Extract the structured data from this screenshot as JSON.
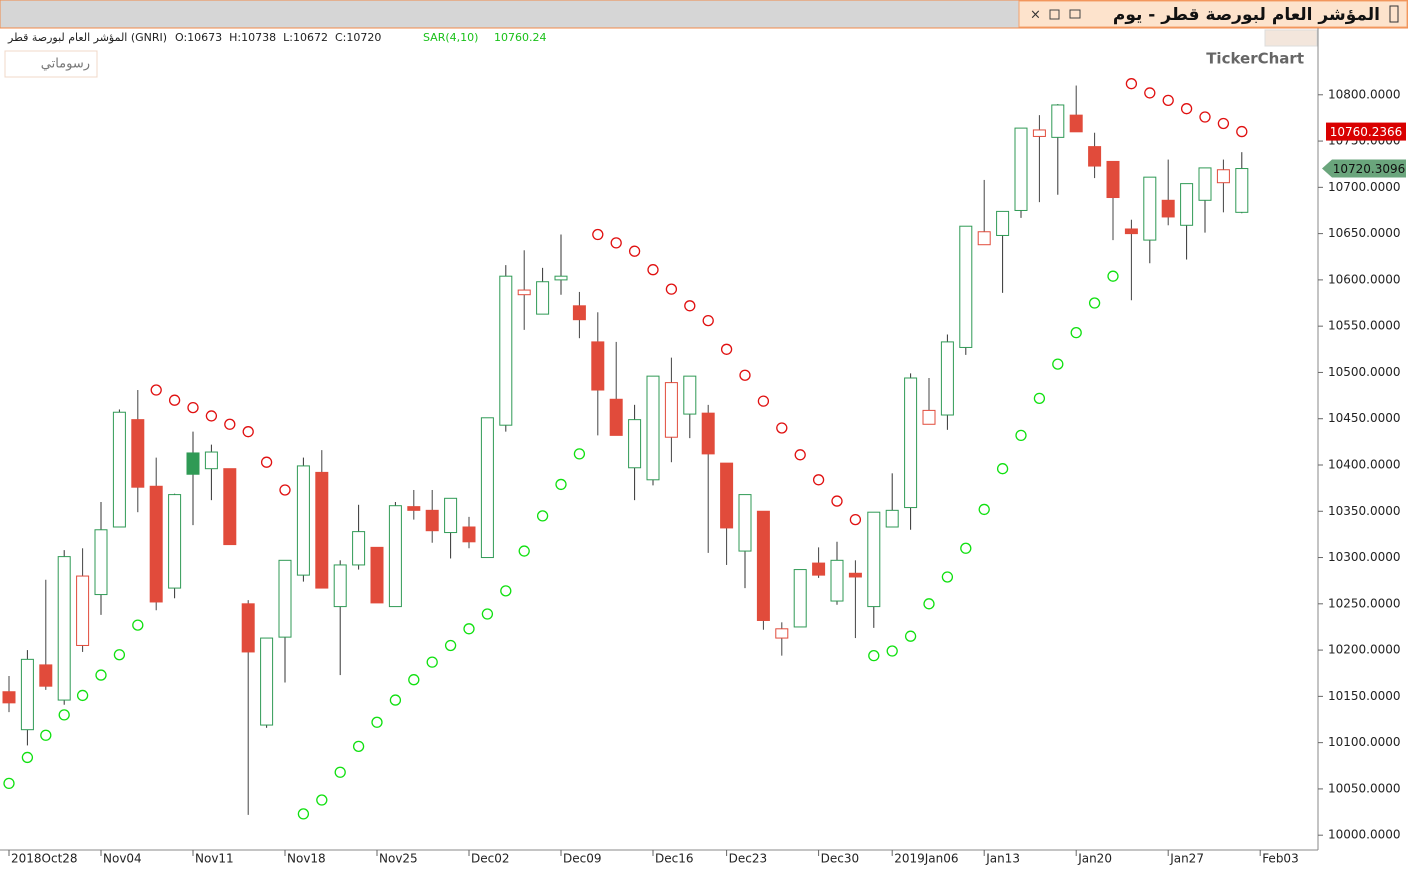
{
  "window": {
    "title": "المؤشر العام لبورصة قطر - يوم",
    "legend_name": "المؤشر العام لبورصة قطر (GNRI)",
    "legend_ohlc": "O:10673  H:10738  L:10672  C:10720",
    "indicator": "SAR(4,10)",
    "indicator_value": "10760.24",
    "button": "رسوماتي",
    "logo": "TickerChart"
  },
  "chart_data": {
    "type": "candlestick",
    "categories": [
      "2018Oct28",
      null,
      null,
      null,
      null,
      "Nov04",
      null,
      null,
      null,
      null,
      "Nov11",
      null,
      null,
      null,
      null,
      "Nov18",
      null,
      null,
      null,
      null,
      "Nov25",
      null,
      null,
      null,
      null,
      "Dec02",
      null,
      null,
      null,
      null,
      "Dec09",
      null,
      null,
      null,
      null,
      "Dec16",
      null,
      null,
      null,
      "Dec23",
      null,
      null,
      null,
      null,
      "Dec30",
      null,
      null,
      null,
      "2019Jan06",
      null,
      null,
      null,
      null,
      "Jan13",
      null,
      null,
      null,
      null,
      "Jan20",
      null,
      null,
      null,
      null,
      "Jan27",
      null,
      null,
      null,
      null,
      "Feb03"
    ],
    "open": [
      10155,
      10114,
      10184,
      10146,
      10205,
      10260,
      10333,
      10449,
      10377,
      10267,
      10413,
      10396,
      10396,
      10250,
      10119,
      10214,
      10281,
      10392,
      10247,
      10292,
      10311,
      10247,
      10355,
      10351,
      10327,
      10333,
      10300,
      10443,
      10584,
      10563,
      10600,
      10572,
      10533,
      10471,
      10397,
      10384,
      10430,
      10455,
      10456,
      10402,
      10307,
      10350,
      10213,
      10225,
      10294,
      10253,
      10283,
      10247,
      10333,
      10354,
      10444,
      10454,
      10527,
      10638,
      10648,
      10675,
      10755,
      10754,
      10778,
      10744,
      10728,
      10655,
      10643,
      10686,
      10659,
      10686,
      10705,
      10673,
      null
    ],
    "high": [
      10172,
      10200,
      10276,
      10308,
      10310,
      10360,
      10460,
      10481,
      10408,
      10369,
      10436,
      10422,
      10396,
      10254,
      10213,
      10297,
      10408,
      10416,
      10297,
      10357,
      10311,
      10360,
      10373,
      10373,
      10364,
      10344,
      10451,
      10616,
      10632,
      10613,
      10649,
      10587,
      10565,
      10533,
      10465,
      10496,
      10516,
      10496,
      10465,
      10402,
      10368,
      10350,
      10230,
      10287,
      10311,
      10317,
      10297,
      10349,
      10391,
      10499,
      10494,
      10541,
      10658,
      10708,
      10674,
      10764,
      10778,
      10790,
      10810,
      10759,
      10728,
      10665,
      10711,
      10730,
      10704,
      10721,
      10730,
      10738,
      null
    ],
    "low": [
      10133,
      10097,
      10157,
      10141,
      10198,
      10238,
      10333,
      10349,
      10243,
      10256,
      10335,
      10362,
      10314,
      10022,
      10116,
      10165,
      10274,
      10267,
      10173,
      10287,
      10251,
      10247,
      10341,
      10316,
      10299,
      10310,
      10300,
      10436,
      10546,
      10563,
      10584,
      10537,
      10432,
      10432,
      10362,
      10378,
      10403,
      10429,
      10305,
      10292,
      10267,
      10222,
      10194,
      10225,
      10278,
      10249,
      10213,
      10224,
      10333,
      10330,
      10444,
      10438,
      10519,
      10638,
      10586,
      10667,
      10684,
      10692,
      10760,
      10710,
      10643,
      10578,
      10618,
      10659,
      10622,
      10651,
      10673,
      10672,
      null
    ],
    "close": [
      10143,
      10190,
      10161,
      10301,
      10280,
      10330,
      10457,
      10376,
      10252,
      10368,
      10390,
      10414,
      10314,
      10198,
      10213,
      10297,
      10399,
      10267,
      10292,
      10328,
      10251,
      10356,
      10351,
      10329,
      10364,
      10317,
      10451,
      10604,
      10589,
      10598,
      10604,
      10557,
      10481,
      10432,
      10449,
      10496,
      10489,
      10496,
      10412,
      10332,
      10368,
      10232,
      10223,
      10287,
      10281,
      10297,
      10279,
      10349,
      10351,
      10494,
      10459,
      10533,
      10658,
      10652,
      10674,
      10764,
      10762,
      10789,
      10760,
      10723,
      10689,
      10650,
      10711,
      10668,
      10704,
      10721,
      10719,
      10720.3096,
      null
    ],
    "sar": [
      10056,
      10084,
      10108,
      10130,
      10151,
      10173,
      10195,
      10227,
      10481,
      10470,
      10462,
      10453,
      10444,
      10436,
      10403,
      10373,
      10023,
      10038,
      10068,
      10096,
      10122,
      10146,
      10168,
      10187,
      10205,
      10223,
      10239,
      10264,
      10307,
      10345,
      10379,
      10412,
      10649,
      10640,
      10631,
      10611,
      10590,
      10572,
      10556,
      10525,
      10497,
      10469,
      10440,
      10411,
      10384,
      10361,
      10341,
      10194,
      10199,
      10215,
      10250,
      10279,
      10310,
      10352,
      10396,
      10432,
      10472,
      10509,
      10543,
      10575,
      10604,
      10812,
      10802,
      10794,
      10785,
      10776,
      10769,
      10760.2366,
      null
    ],
    "up_color": "#2f9a55",
    "down_color": "#e14b3b",
    "sar_up_color": "#10e010",
    "sar_down_color": "#e01010",
    "ylim": [
      9984,
      10870
    ],
    "yticks": [
      {
        "value": 10000,
        "label": "10000.0000"
      },
      {
        "value": 10050,
        "label": "10050.0000"
      },
      {
        "value": 10100,
        "label": "10100.0000"
      },
      {
        "value": 10150,
        "label": "10150.0000"
      },
      {
        "value": 10200,
        "label": "10200.0000"
      },
      {
        "value": 10250,
        "label": "10250.0000"
      },
      {
        "value": 10300,
        "label": "10300.0000"
      },
      {
        "value": 10350,
        "label": "10350.0000"
      },
      {
        "value": 10400,
        "label": "10400.0000"
      },
      {
        "value": 10450,
        "label": "10450.0000"
      },
      {
        "value": 10500,
        "label": "10500.0000"
      },
      {
        "value": 10550,
        "label": "10550.0000"
      },
      {
        "value": 10600,
        "label": "10600.0000"
      },
      {
        "value": 10650,
        "label": "10650.0000"
      },
      {
        "value": 10700,
        "label": "10700.0000"
      },
      {
        "value": 10750,
        "label": "10750.0000"
      },
      {
        "value": 10800,
        "label": "10800.0000"
      }
    ],
    "grid": false
  }
}
